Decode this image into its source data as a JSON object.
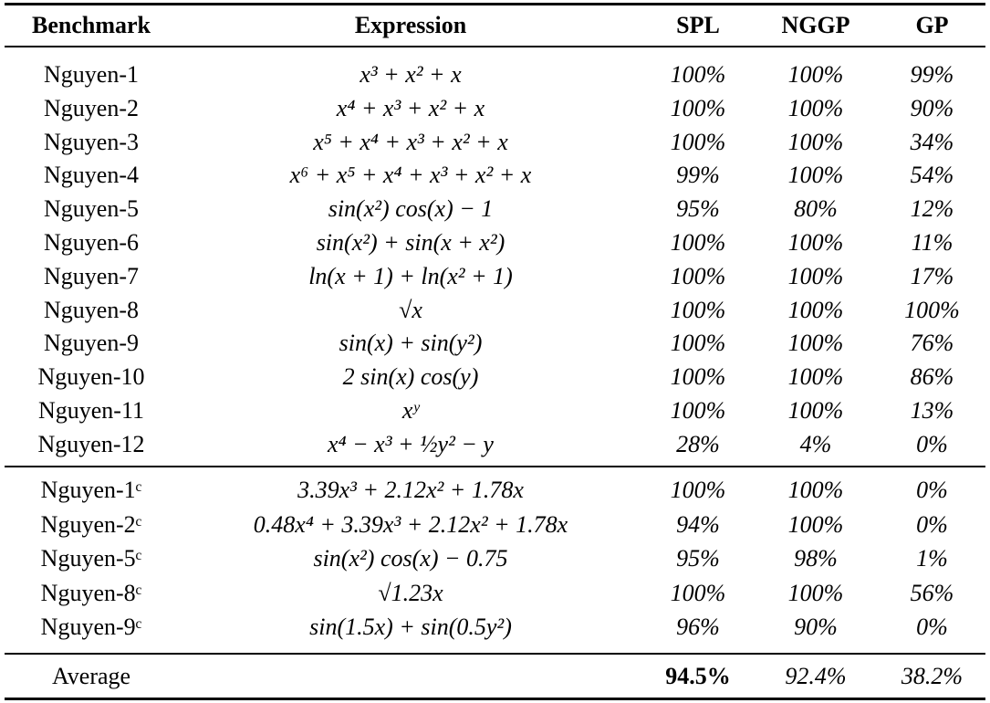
{
  "columns": [
    "Benchmark",
    "Expression",
    "SPL",
    "NGGP",
    "GP"
  ],
  "groups": [
    [
      {
        "name": "Nguyen-1",
        "expr": "x³ + x² + x",
        "spl": "100%",
        "nggp": "100%",
        "gp": "99%"
      },
      {
        "name": "Nguyen-2",
        "expr": "x⁴ + x³ + x² + x",
        "spl": "100%",
        "nggp": "100%",
        "gp": "90%"
      },
      {
        "name": "Nguyen-3",
        "expr": "x⁵ + x⁴ + x³ + x² + x",
        "spl": "100%",
        "nggp": "100%",
        "gp": "34%"
      },
      {
        "name": "Nguyen-4",
        "expr": "x⁶ + x⁵ + x⁴ + x³ + x² + x",
        "spl": "99%",
        "nggp": "100%",
        "gp": "54%"
      },
      {
        "name": "Nguyen-5",
        "expr": "sin(x²) cos(x) − 1",
        "spl": "95%",
        "nggp": "80%",
        "gp": "12%"
      },
      {
        "name": "Nguyen-6",
        "expr": "sin(x²) + sin(x + x²)",
        "spl": "100%",
        "nggp": "100%",
        "gp": "11%"
      },
      {
        "name": "Nguyen-7",
        "expr": "ln(x + 1) + ln(x² + 1)",
        "spl": "100%",
        "nggp": "100%",
        "gp": "17%"
      },
      {
        "name": "Nguyen-8",
        "expr": "√x",
        "spl": "100%",
        "nggp": "100%",
        "gp": "100%"
      },
      {
        "name": "Nguyen-9",
        "expr": "sin(x) + sin(y²)",
        "spl": "100%",
        "nggp": "100%",
        "gp": "76%"
      },
      {
        "name": "Nguyen-10",
        "expr": "2 sin(x) cos(y)",
        "spl": "100%",
        "nggp": "100%",
        "gp": "86%"
      },
      {
        "name": "Nguyen-11",
        "expr": "xʸ",
        "spl": "100%",
        "nggp": "100%",
        "gp": "13%"
      },
      {
        "name": "Nguyen-12",
        "expr": "x⁴ − x³ + ½y² − y",
        "spl": "28%",
        "nggp": "4%",
        "gp": "0%"
      }
    ],
    [
      {
        "name": "Nguyen-1ᶜ",
        "expr": "3.39x³ + 2.12x² + 1.78x",
        "spl": "100%",
        "nggp": "100%",
        "gp": "0%"
      },
      {
        "name": "Nguyen-2ᶜ",
        "expr": "0.48x⁴ + 3.39x³ + 2.12x² + 1.78x",
        "spl": "94%",
        "nggp": "100%",
        "gp": "0%"
      },
      {
        "name": "Nguyen-5ᶜ",
        "expr": "sin(x²) cos(x) − 0.75",
        "spl": "95%",
        "nggp": "98%",
        "gp": "1%"
      },
      {
        "name": "Nguyen-8ᶜ",
        "expr": "√1.23x",
        "spl": "100%",
        "nggp": "100%",
        "gp": "56%"
      },
      {
        "name": "Nguyen-9ᶜ",
        "expr": "sin(1.5x) + sin(0.5y²)",
        "spl": "96%",
        "nggp": "90%",
        "gp": "0%"
      }
    ]
  ],
  "average": {
    "name": "Average",
    "expr": "",
    "spl": "94.5%",
    "nggp": "92.4%",
    "gp": "38.2%"
  }
}
